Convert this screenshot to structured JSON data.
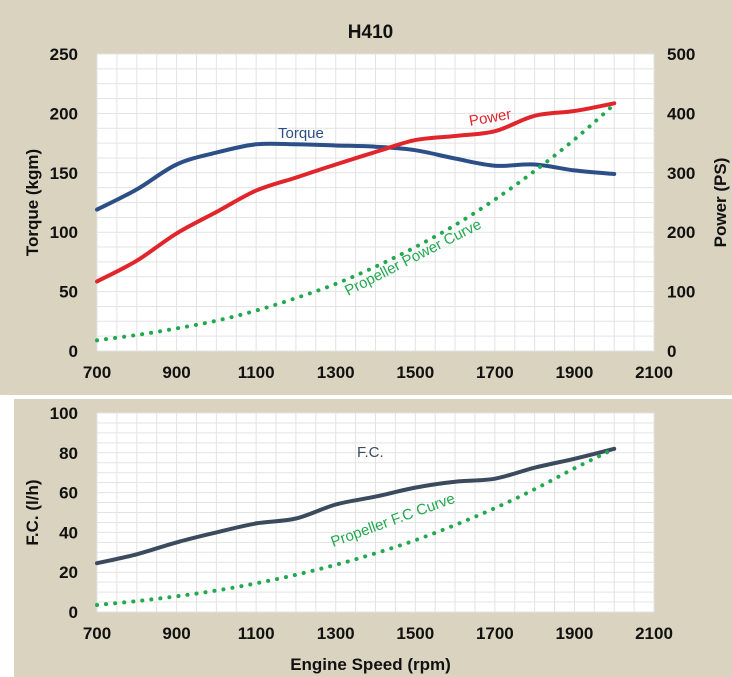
{
  "chart_data": [
    {
      "type": "line",
      "title": "H410",
      "xlabel": "",
      "ylabel": "Torque (kgm)",
      "ylabel_right": "Power (PS)",
      "xlim": [
        700,
        2100
      ],
      "ylim": [
        0,
        250
      ],
      "ylim_right": [
        0,
        500
      ],
      "x_ticks": [
        "700",
        "900",
        "1100",
        "1300",
        "1500",
        "1700",
        "1900",
        "2100"
      ],
      "y_ticks": [
        "0",
        "50",
        "100",
        "150",
        "200",
        "250"
      ],
      "y_ticks_right": [
        "0",
        "100",
        "200",
        "300",
        "400",
        "500"
      ],
      "grid": true,
      "series": [
        {
          "name": "Torque",
          "axis": "left",
          "color": "#2b4f86",
          "style": "solid",
          "x": [
            700,
            800,
            900,
            1000,
            1100,
            1200,
            1300,
            1400,
            1500,
            1600,
            1700,
            1800,
            1900,
            2000
          ],
          "values": [
            119,
            136,
            157,
            167,
            174,
            174,
            173,
            172,
            169,
            162,
            156,
            157,
            152,
            149
          ]
        },
        {
          "name": "Power",
          "axis": "right",
          "color": "#e0262b",
          "style": "solid",
          "x": [
            700,
            800,
            900,
            1000,
            1100,
            1200,
            1300,
            1400,
            1500,
            1600,
            1700,
            1800,
            1900,
            2000
          ],
          "values": [
            117,
            152,
            198,
            234,
            270,
            292,
            314,
            335,
            355,
            362,
            370,
            396,
            404,
            417
          ]
        },
        {
          "name": "Propeller Power Curve",
          "axis": "right",
          "color": "#22a94f",
          "style": "dotted",
          "x": [
            700,
            800,
            900,
            1000,
            1100,
            1200,
            1300,
            1400,
            1500,
            1600,
            1700,
            1800,
            1900,
            2000
          ],
          "values": [
            18,
            27,
            38,
            51,
            68,
            89,
            113,
            142,
            175,
            212,
            255,
            303,
            356,
            415
          ]
        }
      ]
    },
    {
      "type": "line",
      "title": "",
      "xlabel": "Engine Speed (rpm)",
      "ylabel": "F.C. (l/h)",
      "xlim": [
        700,
        2100
      ],
      "ylim": [
        0,
        100
      ],
      "x_ticks": [
        "700",
        "900",
        "1100",
        "1300",
        "1500",
        "1700",
        "1900",
        "2100"
      ],
      "y_ticks": [
        "0",
        "20",
        "40",
        "60",
        "80",
        "100"
      ],
      "grid": true,
      "series": [
        {
          "name": "F.C.",
          "axis": "left",
          "color": "#3c4a5e",
          "style": "solid",
          "x": [
            700,
            800,
            900,
            1000,
            1100,
            1200,
            1300,
            1400,
            1500,
            1600,
            1700,
            1800,
            1900,
            2000
          ],
          "values": [
            24.5,
            29,
            35,
            40,
            44.5,
            47,
            54,
            58,
            62.5,
            65.5,
            67,
            72.5,
            77,
            82
          ]
        },
        {
          "name": "Propeller F.C Curve",
          "axis": "left",
          "color": "#22a94f",
          "style": "dotted",
          "x": [
            700,
            800,
            900,
            1000,
            1100,
            1200,
            1300,
            1400,
            1500,
            1600,
            1700,
            1800,
            1900,
            2000
          ],
          "values": [
            3.5,
            5.5,
            7.9,
            10.8,
            14.4,
            18.7,
            23.7,
            29.5,
            36.1,
            43.7,
            52.2,
            61.7,
            72.2,
            82
          ]
        }
      ]
    }
  ]
}
